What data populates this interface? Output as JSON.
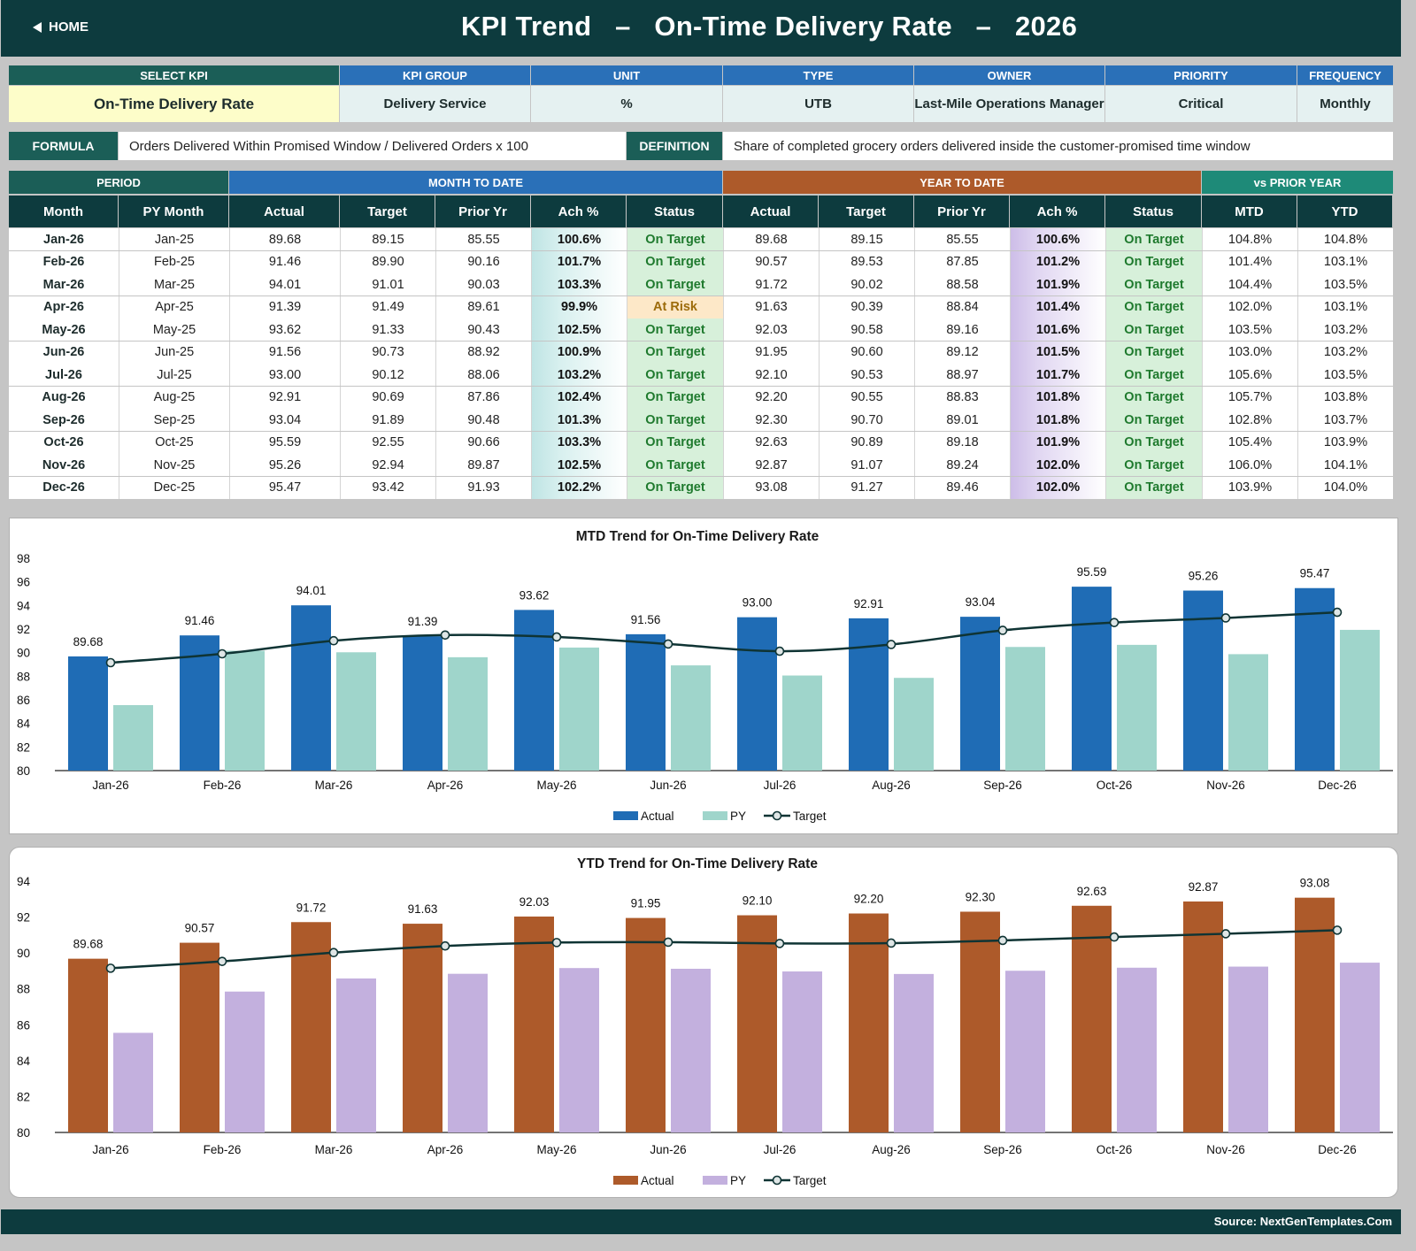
{
  "header": {
    "home_label": "HOME",
    "title": "KPI Trend   –   On-Time Delivery Rate   –   2026"
  },
  "kpi_info": {
    "headers": [
      "SELECT KPI",
      "KPI GROUP",
      "UNIT",
      "TYPE",
      "OWNER",
      "PRIORITY",
      "FREQUENCY"
    ],
    "values": [
      "On-Time Delivery Rate",
      "Delivery Service",
      "%",
      "UTB",
      "Last-Mile Operations Manager",
      "Critical",
      "Monthly"
    ]
  },
  "formula": {
    "formula_label": "FORMULA",
    "formula_text": "Orders Delivered Within Promised Window / Delivered Orders x 100",
    "definition_label": "DEFINITION",
    "definition_text": "Share of completed grocery orders delivered inside the customer-promised time window"
  },
  "table": {
    "group_headers": [
      "PERIOD",
      "MONTH TO DATE",
      "YEAR TO DATE",
      "vs PRIOR YEAR"
    ],
    "columns": [
      "Month",
      "PY Month",
      "Actual",
      "Target",
      "Prior Yr",
      "Ach %",
      "Status",
      "Actual",
      "Target",
      "Prior Yr",
      "Ach %",
      "Status",
      "MTD",
      "YTD"
    ],
    "rows": [
      [
        "Jan-26",
        "Jan-25",
        "89.68",
        "89.15",
        "85.55",
        "100.6%",
        "On Target",
        "89.68",
        "89.15",
        "85.55",
        "100.6%",
        "On Target",
        "104.8%",
        "104.8%"
      ],
      [
        "Feb-26",
        "Feb-25",
        "91.46",
        "89.90",
        "90.16",
        "101.7%",
        "On Target",
        "90.57",
        "89.53",
        "87.85",
        "101.2%",
        "On Target",
        "101.4%",
        "103.1%"
      ],
      [
        "Mar-26",
        "Mar-25",
        "94.01",
        "91.01",
        "90.03",
        "103.3%",
        "On Target",
        "91.72",
        "90.02",
        "88.58",
        "101.9%",
        "On Target",
        "104.4%",
        "103.5%"
      ],
      [
        "Apr-26",
        "Apr-25",
        "91.39",
        "91.49",
        "89.61",
        "99.9%",
        "At Risk",
        "91.63",
        "90.39",
        "88.84",
        "101.4%",
        "On Target",
        "102.0%",
        "103.1%"
      ],
      [
        "May-26",
        "May-25",
        "93.62",
        "91.33",
        "90.43",
        "102.5%",
        "On Target",
        "92.03",
        "90.58",
        "89.16",
        "101.6%",
        "On Target",
        "103.5%",
        "103.2%"
      ],
      [
        "Jun-26",
        "Jun-25",
        "91.56",
        "90.73",
        "88.92",
        "100.9%",
        "On Target",
        "91.95",
        "90.60",
        "89.12",
        "101.5%",
        "On Target",
        "103.0%",
        "103.2%"
      ],
      [
        "Jul-26",
        "Jul-25",
        "93.00",
        "90.12",
        "88.06",
        "103.2%",
        "On Target",
        "92.10",
        "90.53",
        "88.97",
        "101.7%",
        "On Target",
        "105.6%",
        "103.5%"
      ],
      [
        "Aug-26",
        "Aug-25",
        "92.91",
        "90.69",
        "87.86",
        "102.4%",
        "On Target",
        "92.20",
        "90.55",
        "88.83",
        "101.8%",
        "On Target",
        "105.7%",
        "103.8%"
      ],
      [
        "Sep-26",
        "Sep-25",
        "93.04",
        "91.89",
        "90.48",
        "101.3%",
        "On Target",
        "92.30",
        "90.70",
        "89.01",
        "101.8%",
        "On Target",
        "102.8%",
        "103.7%"
      ],
      [
        "Oct-26",
        "Oct-25",
        "95.59",
        "92.55",
        "90.66",
        "103.3%",
        "On Target",
        "92.63",
        "90.89",
        "89.18",
        "101.9%",
        "On Target",
        "105.4%",
        "103.9%"
      ],
      [
        "Nov-26",
        "Nov-25",
        "95.26",
        "92.94",
        "89.87",
        "102.5%",
        "On Target",
        "92.87",
        "91.07",
        "89.24",
        "102.0%",
        "On Target",
        "106.0%",
        "104.1%"
      ],
      [
        "Dec-26",
        "Dec-25",
        "95.47",
        "93.42",
        "91.93",
        "102.2%",
        "On Target",
        "93.08",
        "91.27",
        "89.46",
        "102.0%",
        "On Target",
        "103.9%",
        "104.0%"
      ]
    ]
  },
  "chart_data": [
    {
      "type": "bar",
      "title": "MTD Trend for On-Time Delivery Rate",
      "categories": [
        "Jan-26",
        "Feb-26",
        "Mar-26",
        "Apr-26",
        "May-26",
        "Jun-26",
        "Jul-26",
        "Aug-26",
        "Sep-26",
        "Oct-26",
        "Nov-26",
        "Dec-26"
      ],
      "series": [
        {
          "name": "Actual",
          "kind": "bar",
          "color": "#1f6cb5",
          "labels": true,
          "values": [
            89.68,
            91.46,
            94.01,
            91.39,
            93.62,
            91.56,
            93.0,
            92.91,
            93.04,
            95.59,
            95.26,
            95.47
          ]
        },
        {
          "name": "PY",
          "kind": "bar",
          "color": "#9fd5cb",
          "values": [
            85.55,
            90.16,
            90.03,
            89.61,
            90.43,
            88.92,
            88.06,
            87.86,
            90.48,
            90.66,
            89.87,
            91.93
          ]
        },
        {
          "name": "Target",
          "kind": "line",
          "color": "#0f3434",
          "values": [
            89.15,
            89.9,
            91.01,
            91.49,
            91.33,
            90.73,
            90.12,
            90.69,
            91.89,
            92.55,
            92.94,
            93.42
          ]
        }
      ],
      "ylim": [
        80,
        98
      ],
      "ystep": 2,
      "legend": "bottom",
      "grid": false
    },
    {
      "type": "bar",
      "title": "YTD Trend for On-Time Delivery Rate",
      "categories": [
        "Jan-26",
        "Feb-26",
        "Mar-26",
        "Apr-26",
        "May-26",
        "Jun-26",
        "Jul-26",
        "Aug-26",
        "Sep-26",
        "Oct-26",
        "Nov-26",
        "Dec-26"
      ],
      "series": [
        {
          "name": "Actual",
          "kind": "bar",
          "color": "#ad5a2a",
          "labels": true,
          "values": [
            89.68,
            90.57,
            91.72,
            91.63,
            92.03,
            91.95,
            92.1,
            92.2,
            92.3,
            92.63,
            92.87,
            93.08
          ]
        },
        {
          "name": "PY",
          "kind": "bar",
          "color": "#c3b0de",
          "values": [
            85.55,
            87.85,
            88.58,
            88.84,
            89.16,
            89.12,
            88.97,
            88.83,
            89.01,
            89.18,
            89.24,
            89.46
          ]
        },
        {
          "name": "Target",
          "kind": "line",
          "color": "#0f3434",
          "values": [
            89.15,
            89.53,
            90.02,
            90.39,
            90.58,
            90.6,
            90.53,
            90.55,
            90.7,
            90.89,
            91.07,
            91.27
          ]
        }
      ],
      "ylim": [
        80,
        94
      ],
      "ystep": 2,
      "legend": "bottom",
      "grid": false
    }
  ],
  "footer": {
    "source": "Source: NextGenTemplates.Com"
  }
}
